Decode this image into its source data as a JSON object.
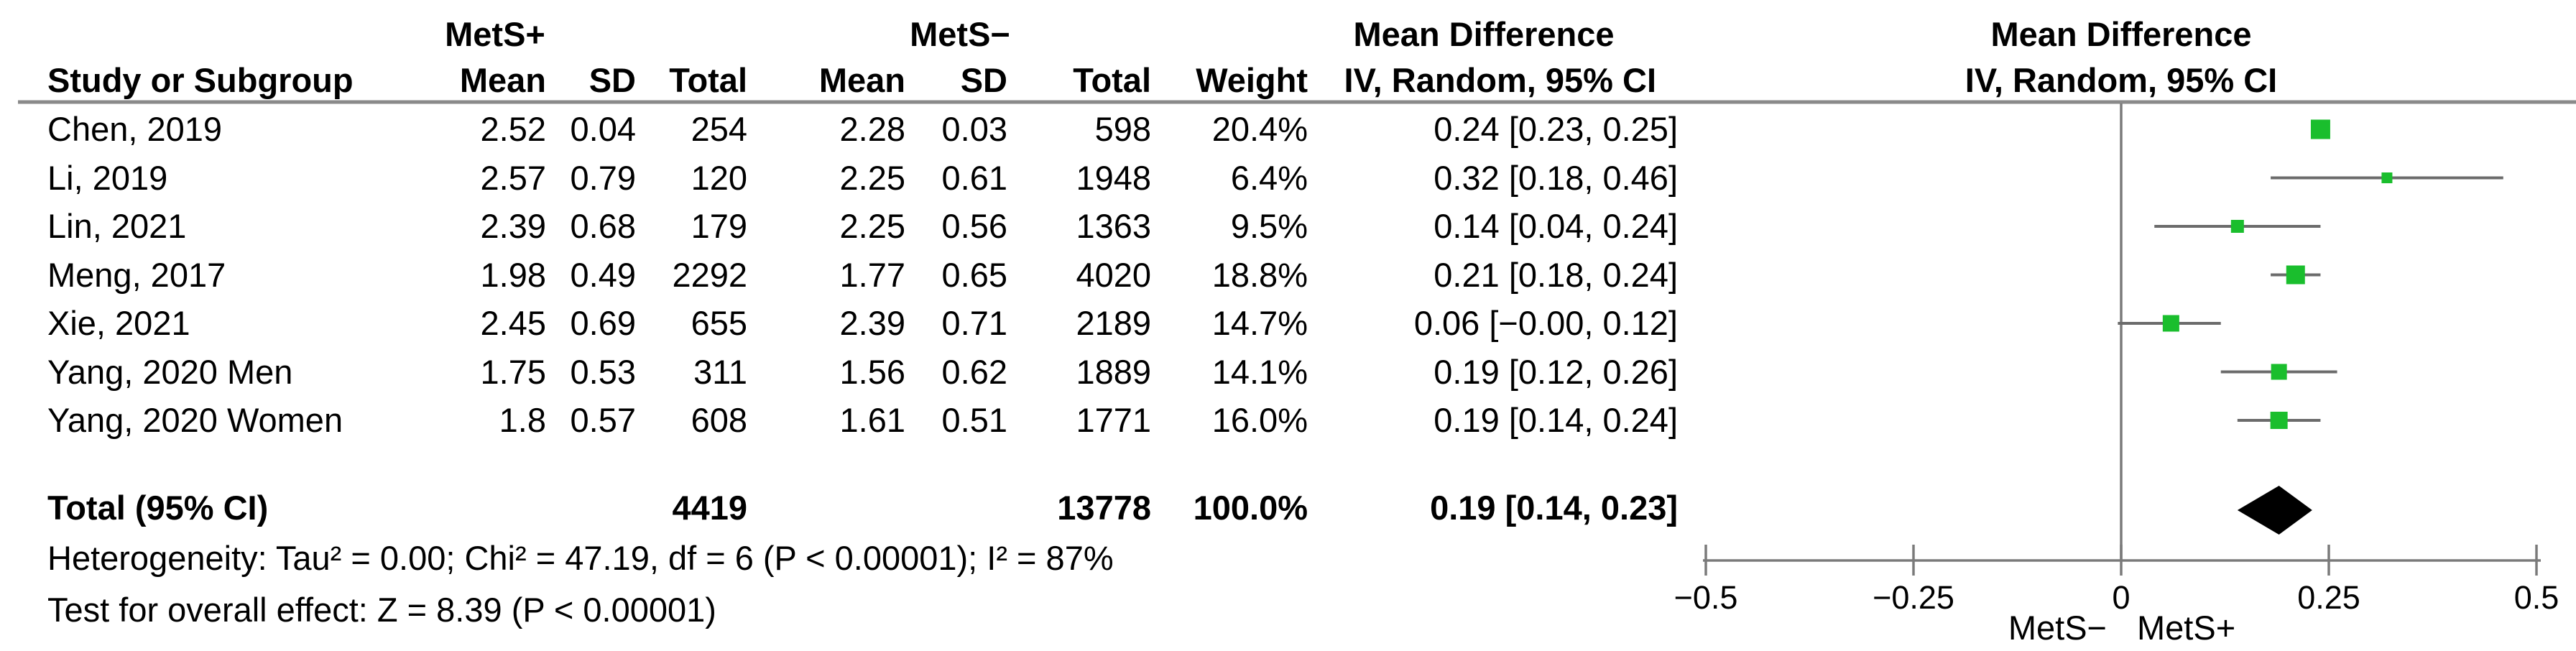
{
  "figure_type": "forest-plot",
  "header": {
    "group1_label": "MetS+",
    "group2_label": "MetS−",
    "study_col": "Study or Subgroup",
    "mean_col": "Mean",
    "sd_col": "SD",
    "total_col": "Total",
    "weight_col": "Weight",
    "ci_col": "IV, Random, 95% CI",
    "md_text_header_line1": "Mean Difference",
    "md_text_header_line2": "IV, Random, 95% CI",
    "md_plot_header_line1": "Mean Difference",
    "md_plot_header_line2": "IV, Random, 95% CI"
  },
  "rows": [
    {
      "study": "Chen, 2019",
      "mean1": "2.52",
      "sd1": "0.04",
      "total1": "254",
      "mean2": "2.28",
      "sd2": "0.03",
      "total2": "598",
      "weight": "20.4%",
      "ci_text": "0.24 [0.23, 0.25]"
    },
    {
      "study": "Li, 2019",
      "mean1": "2.57",
      "sd1": "0.79",
      "total1": "120",
      "mean2": "2.25",
      "sd2": "0.61",
      "total2": "1948",
      "weight": "6.4%",
      "ci_text": "0.32 [0.18, 0.46]"
    },
    {
      "study": "Lin, 2021",
      "mean1": "2.39",
      "sd1": "0.68",
      "total1": "179",
      "mean2": "2.25",
      "sd2": "0.56",
      "total2": "1363",
      "weight": "9.5%",
      "ci_text": "0.14 [0.04, 0.24]"
    },
    {
      "study": "Meng, 2017",
      "mean1": "1.98",
      "sd1": "0.49",
      "total1": "2292",
      "mean2": "1.77",
      "sd2": "0.65",
      "total2": "4020",
      "weight": "18.8%",
      "ci_text": "0.21 [0.18, 0.24]"
    },
    {
      "study": "Xie, 2021",
      "mean1": "2.45",
      "sd1": "0.69",
      "total1": "655",
      "mean2": "2.39",
      "sd2": "0.71",
      "total2": "2189",
      "weight": "14.7%",
      "ci_text": "0.06 [−0.00, 0.12]"
    },
    {
      "study": "Yang, 2020 Men",
      "mean1": "1.75",
      "sd1": "0.53",
      "total1": "311",
      "mean2": "1.56",
      "sd2": "0.62",
      "total2": "1889",
      "weight": "14.1%",
      "ci_text": "0.19 [0.12, 0.26]"
    },
    {
      "study": "Yang, 2020 Women",
      "mean1": "1.8",
      "sd1": "0.57",
      "total1": "608",
      "mean2": "1.61",
      "sd2": "0.51",
      "total2": "1771",
      "weight": "16.0%",
      "ci_text": "0.19 [0.14, 0.24]"
    }
  ],
  "total_row": {
    "label": "Total (95% CI)",
    "total1": "4419",
    "total2": "13778",
    "weight": "100.0%",
    "ci_text": "0.19 [0.14, 0.23]"
  },
  "footnotes": {
    "heterogeneity": "Heterogeneity: Tau² = 0.00; Chi² = 47.19, df = 6 (P < 0.00001); I² = 87%",
    "overall_effect": "Test for overall effect: Z = 8.39 (P < 0.00001)"
  },
  "colors": {
    "marker_green": "#1ABE2D",
    "diamond_black": "#000000",
    "line_gray": "#7a7a7a",
    "ci_line_gray": "#6b6b6b",
    "rule_gray": "#8a8a8a"
  },
  "chart_data": {
    "type": "scatter",
    "subtype": "forest-plot-mean-difference",
    "title": "Mean Difference, IV, Random, 95% CI",
    "x_axis": {
      "min": -0.5,
      "max": 0.5,
      "ticks": [
        -0.5,
        -0.25,
        0,
        0.25,
        0.5
      ],
      "tick_labels": [
        "−0.5",
        "−0.25",
        "0",
        "0.25",
        "0.5"
      ],
      "left_label": "MetS−",
      "right_label": "MetS+",
      "zero_line": 0,
      "grid": false
    },
    "studies": [
      {
        "name": "Chen, 2019",
        "md": 0.24,
        "ci_low": 0.23,
        "ci_high": 0.25,
        "weight_pct": 20.4
      },
      {
        "name": "Li, 2019",
        "md": 0.32,
        "ci_low": 0.18,
        "ci_high": 0.46,
        "weight_pct": 6.4
      },
      {
        "name": "Lin, 2021",
        "md": 0.14,
        "ci_low": 0.04,
        "ci_high": 0.24,
        "weight_pct": 9.5
      },
      {
        "name": "Meng, 2017",
        "md": 0.21,
        "ci_low": 0.18,
        "ci_high": 0.24,
        "weight_pct": 18.8
      },
      {
        "name": "Xie, 2021",
        "md": 0.06,
        "ci_low": -0.004,
        "ci_high": 0.12,
        "weight_pct": 14.7
      },
      {
        "name": "Yang, 2020 Men",
        "md": 0.19,
        "ci_low": 0.12,
        "ci_high": 0.26,
        "weight_pct": 14.1
      },
      {
        "name": "Yang, 2020 Women",
        "md": 0.19,
        "ci_low": 0.14,
        "ci_high": 0.24,
        "weight_pct": 16.0
      }
    ],
    "overall": {
      "name": "Total (95% CI)",
      "md": 0.19,
      "ci_low": 0.14,
      "ci_high": 0.23,
      "weight_pct": 100.0
    },
    "statistics": {
      "tau2": 0.0,
      "chi2": 47.19,
      "df": 6,
      "het_p": "< 0.00001",
      "i2_pct": 87,
      "z": 8.39,
      "overall_p": "< 0.00001"
    },
    "legend_position": "none"
  }
}
